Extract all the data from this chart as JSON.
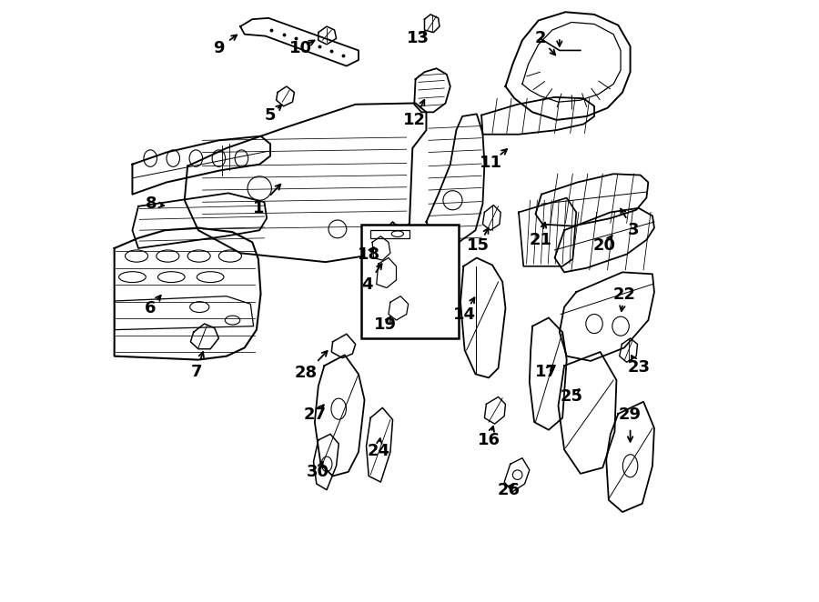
{
  "background_color": "#ffffff",
  "line_color": "#000000",
  "label_color": "#000000",
  "fig_width": 9.0,
  "fig_height": 6.62,
  "dpi": 100,
  "font_size_labels": 13,
  "label_positions": {
    "1": [
      0.248,
      0.655,
      0.29,
      0.7
    ],
    "2": [
      0.718,
      0.938,
      0.748,
      0.905
    ],
    "3": [
      0.874,
      0.618,
      0.848,
      0.66
    ],
    "4": [
      0.43,
      0.528,
      0.458,
      0.568
    ],
    "5": [
      0.268,
      0.81,
      0.292,
      0.832
    ],
    "6": [
      0.068,
      0.488,
      0.09,
      0.515
    ],
    "7": [
      0.145,
      0.382,
      0.158,
      0.422
    ],
    "8": [
      0.07,
      0.662,
      0.098,
      0.658
    ],
    "9": [
      0.182,
      0.922,
      0.218,
      0.948
    ],
    "10": [
      0.318,
      0.922,
      0.348,
      0.938
    ],
    "11": [
      0.635,
      0.73,
      0.668,
      0.758
    ],
    "12": [
      0.508,
      0.802,
      0.528,
      0.842
    ],
    "13": [
      0.515,
      0.938,
      0.53,
      0.955
    ],
    "14": [
      0.592,
      0.478,
      0.612,
      0.512
    ],
    "15": [
      0.615,
      0.592,
      0.635,
      0.628
    ],
    "16": [
      0.632,
      0.268,
      0.642,
      0.298
    ],
    "17": [
      0.728,
      0.382,
      0.742,
      0.398
    ],
    "18": [
      0.432,
      0.578,
      0.445,
      0.595
    ],
    "19": [
      0.46,
      0.46,
      0.472,
      0.48
    ],
    "20": [
      0.825,
      0.592,
      0.842,
      0.615
    ],
    "21": [
      0.718,
      0.602,
      0.728,
      0.638
    ],
    "22": [
      0.858,
      0.51,
      0.852,
      0.476
    ],
    "23": [
      0.882,
      0.39,
      0.866,
      0.415
    ],
    "24": [
      0.448,
      0.25,
      0.452,
      0.278
    ],
    "25": [
      0.77,
      0.34,
      0.788,
      0.358
    ],
    "26": [
      0.665,
      0.185,
      0.678,
      0.2
    ],
    "27": [
      0.342,
      0.31,
      0.362,
      0.332
    ],
    "28": [
      0.328,
      0.38,
      0.368,
      0.422
    ],
    "29": [
      0.868,
      0.31,
      0.868,
      0.258
    ],
    "30": [
      0.348,
      0.215,
      0.358,
      0.238
    ]
  }
}
